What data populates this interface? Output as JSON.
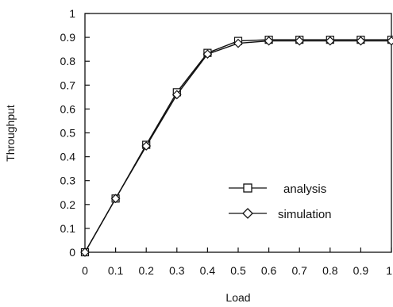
{
  "chart_data": {
    "type": "line",
    "xlabel": "Load",
    "ylabel": "Throughput",
    "xlim": [
      0,
      1
    ],
    "ylim": [
      0,
      1
    ],
    "x_ticks": [
      "0",
      "0.1",
      "0.2",
      "0.3",
      "0.4",
      "0.5",
      "0.6",
      "0.7",
      "0.8",
      "0.9",
      "1"
    ],
    "y_ticks": [
      "0",
      "0.1",
      "0.2",
      "0.3",
      "0.4",
      "0.5",
      "0.6",
      "0.7",
      "0.8",
      "0.9",
      "1"
    ],
    "grid": false,
    "legend_position": "lower-right",
    "x": [
      0,
      0.1,
      0.2,
      0.3,
      0.4,
      0.5,
      0.6,
      0.7,
      0.8,
      0.9,
      1.0
    ],
    "series": [
      {
        "name": "analysis",
        "marker": "square",
        "values": [
          0.0,
          0.225,
          0.45,
          0.67,
          0.835,
          0.885,
          0.89,
          0.89,
          0.89,
          0.89,
          0.89
        ]
      },
      {
        "name": "simulation",
        "marker": "diamond",
        "values": [
          0.0,
          0.225,
          0.445,
          0.66,
          0.83,
          0.875,
          0.885,
          0.885,
          0.885,
          0.885,
          0.885
        ]
      }
    ],
    "line_color": "#111111"
  }
}
